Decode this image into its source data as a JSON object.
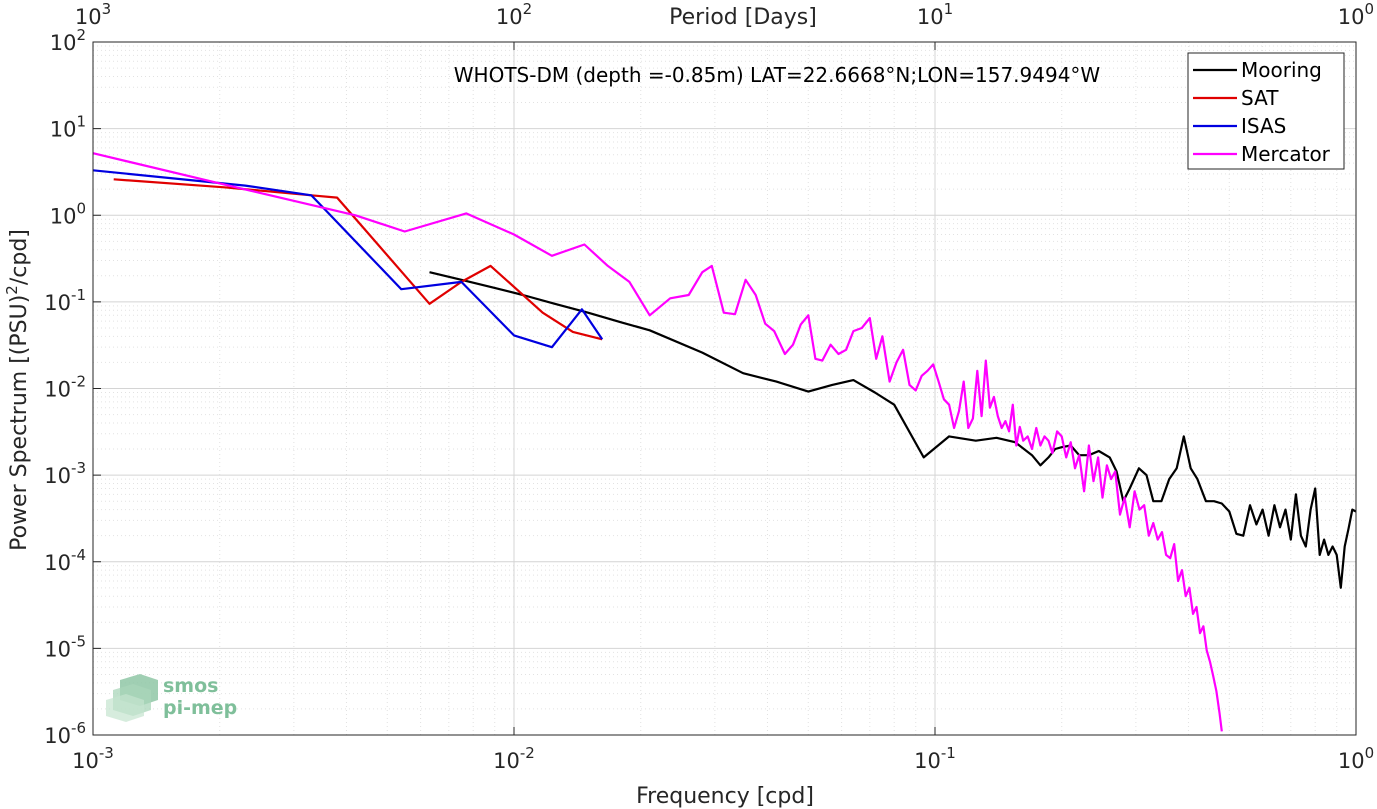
{
  "chart_data": {
    "type": "line",
    "title": "",
    "annotation": "WHOTS-DM (depth =-0.85m) LAT=22.6668°N;LON=157.9494°W",
    "xlabel": "Frequency [cpd]",
    "ylabel": "Power Spectrum [(PSU)²/cpd]",
    "ylabel_parts": {
      "main": "Power Spectrum [(PSU)",
      "sup": "2",
      "tail": "/cpd]"
    },
    "top_xlabel": "Period [Days]",
    "xscale": "log",
    "yscale": "log",
    "xlim": [
      0.001,
      1
    ],
    "ylim": [
      1e-06,
      100
    ],
    "grid": true,
    "legend_position": "top-right",
    "x_ticks": [
      {
        "value": 0.001,
        "base": "10",
        "exp": "-3"
      },
      {
        "value": 0.01,
        "base": "10",
        "exp": "-2"
      },
      {
        "value": 0.1,
        "base": "10",
        "exp": "-1"
      },
      {
        "value": 1,
        "base": "10",
        "exp": "0"
      }
    ],
    "top_ticks": [
      {
        "value": 1000,
        "base": "10",
        "exp": "3"
      },
      {
        "value": 100,
        "base": "10",
        "exp": "2"
      },
      {
        "value": 10,
        "base": "10",
        "exp": "1"
      },
      {
        "value": 1,
        "base": "10",
        "exp": "0"
      }
    ],
    "y_ticks": [
      {
        "value": 100,
        "base": "10",
        "exp": "2"
      },
      {
        "value": 10,
        "base": "10",
        "exp": "1"
      },
      {
        "value": 1,
        "base": "10",
        "exp": "0"
      },
      {
        "value": 0.1,
        "base": "10",
        "exp": "-1"
      },
      {
        "value": 0.01,
        "base": "10",
        "exp": "-2"
      },
      {
        "value": 0.001,
        "base": "10",
        "exp": "-3"
      },
      {
        "value": 0.0001,
        "base": "10",
        "exp": "-4"
      },
      {
        "value": 1e-05,
        "base": "10",
        "exp": "-5"
      },
      {
        "value": 1e-06,
        "base": "10",
        "exp": "-6"
      }
    ],
    "series": [
      {
        "name": "Mooring",
        "color": "#000000",
        "x": [
          0.0063,
          0.0075,
          0.009,
          0.0105,
          0.0125,
          0.015,
          0.018,
          0.021,
          0.028,
          0.035,
          0.042,
          0.05,
          0.057,
          0.064,
          0.072,
          0.08,
          0.094,
          0.108,
          0.125,
          0.14,
          0.155,
          0.17,
          0.178,
          0.186,
          0.193,
          0.2,
          0.21,
          0.22,
          0.232,
          0.245,
          0.26,
          0.27,
          0.28,
          0.29,
          0.305,
          0.318,
          0.33,
          0.345,
          0.36,
          0.375,
          0.39,
          0.405,
          0.42,
          0.44,
          0.46,
          0.48,
          0.5,
          0.52,
          0.54,
          0.56,
          0.58,
          0.6,
          0.62,
          0.64,
          0.66,
          0.68,
          0.7,
          0.72,
          0.74,
          0.76,
          0.78,
          0.8,
          0.82,
          0.84,
          0.86,
          0.88,
          0.9,
          0.92,
          0.94,
          0.96,
          0.98,
          1.0
        ],
        "y": [
          0.22,
          0.18,
          0.145,
          0.12,
          0.095,
          0.075,
          0.058,
          0.047,
          0.026,
          0.015,
          0.012,
          0.0092,
          0.011,
          0.0125,
          0.009,
          0.0065,
          0.0016,
          0.0028,
          0.0025,
          0.0027,
          0.0024,
          0.0017,
          0.0013,
          0.0016,
          0.002,
          0.0021,
          0.0022,
          0.0017,
          0.0017,
          0.0019,
          0.0016,
          0.0011,
          0.0005,
          0.0007,
          0.0012,
          0.001,
          0.0005,
          0.0005,
          0.0009,
          0.0012,
          0.0028,
          0.0012,
          0.0009,
          0.0005,
          0.0005,
          0.00047,
          0.00038,
          0.00021,
          0.0002,
          0.00045,
          0.00027,
          0.0004,
          0.0002,
          0.00045,
          0.00025,
          0.0004,
          0.00018,
          0.0006,
          0.0002,
          0.00015,
          0.0004,
          0.0007,
          0.00012,
          0.00018,
          0.00012,
          0.00015,
          0.00012,
          5e-05,
          0.00015,
          0.00024,
          0.0004,
          0.00038
        ]
      },
      {
        "name": "SAT",
        "color": "#e00000",
        "x": [
          0.00112,
          0.00205,
          0.0033,
          0.0038,
          0.0063,
          0.0075,
          0.0088,
          0.0117,
          0.0138,
          0.0162
        ],
        "y": [
          2.6,
          2.1,
          1.7,
          1.6,
          0.095,
          0.17,
          0.26,
          0.075,
          0.045,
          0.037
        ]
      },
      {
        "name": "ISAS",
        "color": "#0000e0",
        "x": [
          0.001,
          0.0023,
          0.0033,
          0.0054,
          0.0075,
          0.01,
          0.0123,
          0.0145,
          0.0162
        ],
        "y": [
          3.3,
          2.2,
          1.7,
          0.14,
          0.17,
          0.041,
          0.03,
          0.082,
          0.037
        ]
      },
      {
        "name": "Mercator",
        "color": "#ff00ff",
        "x": [
          0.001,
          0.0021,
          0.0042,
          0.0055,
          0.0077,
          0.01,
          0.0123,
          0.0147,
          0.0167,
          0.0188,
          0.021,
          0.0235,
          0.026,
          0.028,
          0.0295,
          0.0315,
          0.0335,
          0.0355,
          0.0375,
          0.0395,
          0.0415,
          0.044,
          0.046,
          0.048,
          0.05,
          0.052,
          0.054,
          0.0565,
          0.059,
          0.0615,
          0.064,
          0.067,
          0.07,
          0.0725,
          0.075,
          0.078,
          0.081,
          0.084,
          0.087,
          0.09,
          0.093,
          0.096,
          0.099,
          0.102,
          0.105,
          0.108,
          0.111,
          0.114,
          0.117,
          0.12,
          0.123,
          0.126,
          0.129,
          0.132,
          0.135,
          0.138,
          0.141,
          0.144,
          0.147,
          0.15,
          0.153,
          0.156,
          0.159,
          0.162,
          0.166,
          0.17,
          0.174,
          0.178,
          0.182,
          0.186,
          0.19,
          0.195,
          0.2,
          0.205,
          0.21,
          0.215,
          0.22,
          0.226,
          0.232,
          0.238,
          0.244,
          0.25,
          0.256,
          0.262,
          0.268,
          0.275,
          0.282,
          0.29,
          0.298,
          0.306,
          0.314,
          0.322,
          0.33,
          0.338,
          0.346,
          0.354,
          0.362,
          0.37,
          0.378,
          0.386,
          0.394,
          0.402,
          0.41,
          0.418,
          0.426,
          0.434,
          0.442,
          0.45,
          0.458,
          0.466,
          0.474,
          0.48
        ],
        "y": [
          5.2,
          2.2,
          1.0,
          0.65,
          1.05,
          0.6,
          0.34,
          0.46,
          0.26,
          0.17,
          0.07,
          0.11,
          0.12,
          0.22,
          0.26,
          0.075,
          0.072,
          0.18,
          0.12,
          0.056,
          0.046,
          0.025,
          0.032,
          0.055,
          0.07,
          0.022,
          0.021,
          0.032,
          0.025,
          0.028,
          0.046,
          0.05,
          0.065,
          0.022,
          0.04,
          0.012,
          0.02,
          0.028,
          0.011,
          0.0095,
          0.014,
          0.016,
          0.019,
          0.012,
          0.0075,
          0.0065,
          0.0035,
          0.0055,
          0.012,
          0.0035,
          0.0045,
          0.016,
          0.0048,
          0.021,
          0.006,
          0.008,
          0.0048,
          0.0035,
          0.0042,
          0.0032,
          0.0065,
          0.0022,
          0.0036,
          0.0025,
          0.0028,
          0.002,
          0.0035,
          0.0022,
          0.0028,
          0.0025,
          0.0018,
          0.0032,
          0.0028,
          0.0016,
          0.0024,
          0.0012,
          0.0017,
          0.00065,
          0.0022,
          0.00085,
          0.0016,
          0.00055,
          0.0013,
          0.0009,
          0.0011,
          0.00035,
          0.00055,
          0.00025,
          0.00065,
          0.0004,
          0.00045,
          0.0002,
          0.00028,
          0.00018,
          0.00022,
          0.00012,
          0.00011,
          0.00016,
          6e-05,
          8e-05,
          4e-05,
          5e-05,
          2.5e-05,
          3e-05,
          1.5e-05,
          1.8e-05,
          9.5e-06,
          7e-06,
          4.8e-06,
          3.2e-06,
          1.8e-06,
          1.1e-06
        ]
      }
    ],
    "logo": {
      "line1": "smos",
      "line2": "pi-mep"
    }
  }
}
